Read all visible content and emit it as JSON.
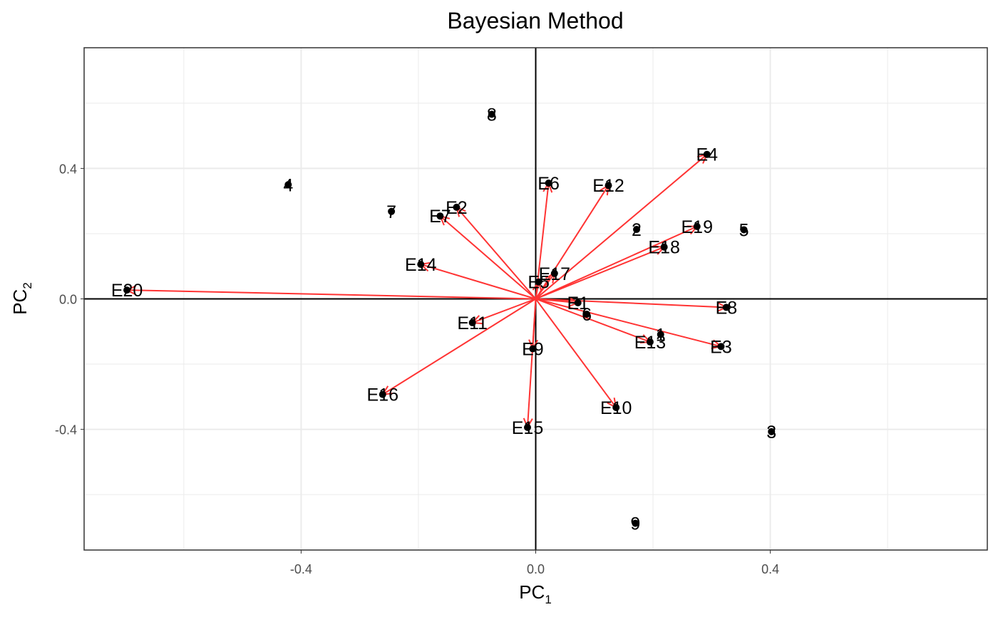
{
  "chart_data": {
    "type": "scatter",
    "title": "Bayesian Method",
    "xlabel": {
      "base": "PC",
      "sub": "1"
    },
    "ylabel": {
      "base": "PC",
      "sub": "2"
    },
    "xlim": [
      -0.77,
      0.77
    ],
    "ylim": [
      -0.77,
      0.77
    ],
    "x_ticks": [
      -0.4,
      0.0,
      0.4
    ],
    "x_tick_labels": [
      "-0.4",
      "0.0",
      "0.4"
    ],
    "y_ticks": [
      -0.4,
      0.0,
      0.4
    ],
    "y_tick_labels": [
      "-0.4",
      "0.0",
      "0.4"
    ],
    "grid": true,
    "reference_lines": {
      "x": 0,
      "y": 0
    },
    "colors": {
      "arrow": "#ff3333",
      "point": "#000000",
      "grid": "#ebebeb"
    },
    "genotypes": [
      {
        "label": "1",
        "x": 0.213,
        "y": -0.109
      },
      {
        "label": "2",
        "x": 0.172,
        "y": 0.213
      },
      {
        "label": "3",
        "x": 0.402,
        "y": -0.407
      },
      {
        "label": "4",
        "x": -0.422,
        "y": 0.35
      },
      {
        "label": "5",
        "x": 0.355,
        "y": 0.212
      },
      {
        "label": "6",
        "x": 0.087,
        "y": -0.047
      },
      {
        "label": "7",
        "x": -0.246,
        "y": 0.268
      },
      {
        "label": "8",
        "x": -0.075,
        "y": 0.566
      },
      {
        "label": "9",
        "x": 0.17,
        "y": -0.688
      }
    ],
    "environments": [
      {
        "label": "E1",
        "x": 0.072,
        "y": -0.012
      },
      {
        "label": "E2",
        "x": -0.135,
        "y": 0.281
      },
      {
        "label": "E3",
        "x": 0.316,
        "y": -0.146
      },
      {
        "label": "E4",
        "x": 0.292,
        "y": 0.443
      },
      {
        "label": "E5",
        "x": 0.005,
        "y": 0.052
      },
      {
        "label": "E6",
        "x": 0.022,
        "y": 0.355
      },
      {
        "label": "E7",
        "x": -0.163,
        "y": 0.254
      },
      {
        "label": "E8",
        "x": 0.325,
        "y": -0.026
      },
      {
        "label": "E9",
        "x": -0.005,
        "y": -0.153
      },
      {
        "label": "E10",
        "x": 0.137,
        "y": -0.333
      },
      {
        "label": "E11",
        "x": -0.108,
        "y": -0.073
      },
      {
        "label": "E12",
        "x": 0.124,
        "y": 0.348
      },
      {
        "label": "E13",
        "x": 0.195,
        "y": -0.132
      },
      {
        "label": "E14",
        "x": -0.196,
        "y": 0.106
      },
      {
        "label": "E15",
        "x": -0.014,
        "y": -0.394
      },
      {
        "label": "E16",
        "x": -0.261,
        "y": -0.293
      },
      {
        "label": "E17",
        "x": 0.032,
        "y": 0.078
      },
      {
        "label": "E18",
        "x": 0.219,
        "y": 0.159
      },
      {
        "label": "E19",
        "x": 0.275,
        "y": 0.222
      },
      {
        "label": "E20",
        "x": -0.697,
        "y": 0.027
      }
    ]
  }
}
